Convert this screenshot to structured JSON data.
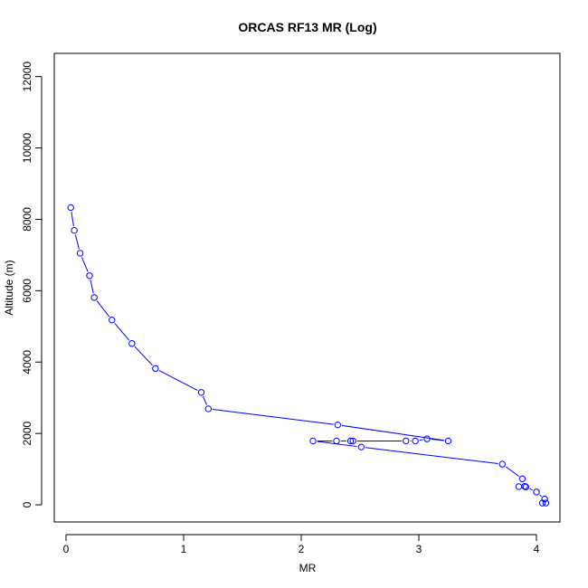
{
  "chart_data": {
    "type": "line",
    "title": "ORCAS RF13 MR (Log)",
    "xlabel": "MR",
    "ylabel": "Altitude (m)",
    "xlim": [
      -0.1,
      4.2
    ],
    "ylim": [
      -480,
      12650
    ],
    "xticks": [
      0,
      1,
      2,
      3,
      4
    ],
    "yticks": [
      0,
      2000,
      4000,
      6000,
      8000,
      10000,
      12000
    ],
    "grid": false,
    "legend": "none",
    "series_color": "#0000ff",
    "points": [
      {
        "x": 0.04,
        "y": 8330
      },
      {
        "x": 0.07,
        "y": 7690
      },
      {
        "x": 0.12,
        "y": 7050
      },
      {
        "x": 0.2,
        "y": 6420
      },
      {
        "x": 0.24,
        "y": 5810
      },
      {
        "x": 0.39,
        "y": 5180
      },
      {
        "x": 0.56,
        "y": 4520
      },
      {
        "x": 0.76,
        "y": 3820
      },
      {
        "x": 1.15,
        "y": 3150
      },
      {
        "x": 1.21,
        "y": 2690
      },
      {
        "x": 2.31,
        "y": 2240
      },
      {
        "x": 3.25,
        "y": 1790
      },
      {
        "x": 3.07,
        "y": 1850
      },
      {
        "x": 2.97,
        "y": 1790
      },
      {
        "x": 2.89,
        "y": 1790
      },
      {
        "x": 2.44,
        "y": 1790
      },
      {
        "x": 2.42,
        "y": 1790
      },
      {
        "x": 2.3,
        "y": 1790
      },
      {
        "x": 2.1,
        "y": 1790
      },
      {
        "x": 2.51,
        "y": 1620
      },
      {
        "x": 3.71,
        "y": 1140
      },
      {
        "x": 3.88,
        "y": 730
      },
      {
        "x": 3.85,
        "y": 510
      },
      {
        "x": 3.9,
        "y": 520
      },
      {
        "x": 3.91,
        "y": 500
      },
      {
        "x": 4.0,
        "y": 360
      },
      {
        "x": 4.07,
        "y": 160
      },
      {
        "x": 4.05,
        "y": 50
      },
      {
        "x": 4.08,
        "y": 50
      }
    ]
  }
}
